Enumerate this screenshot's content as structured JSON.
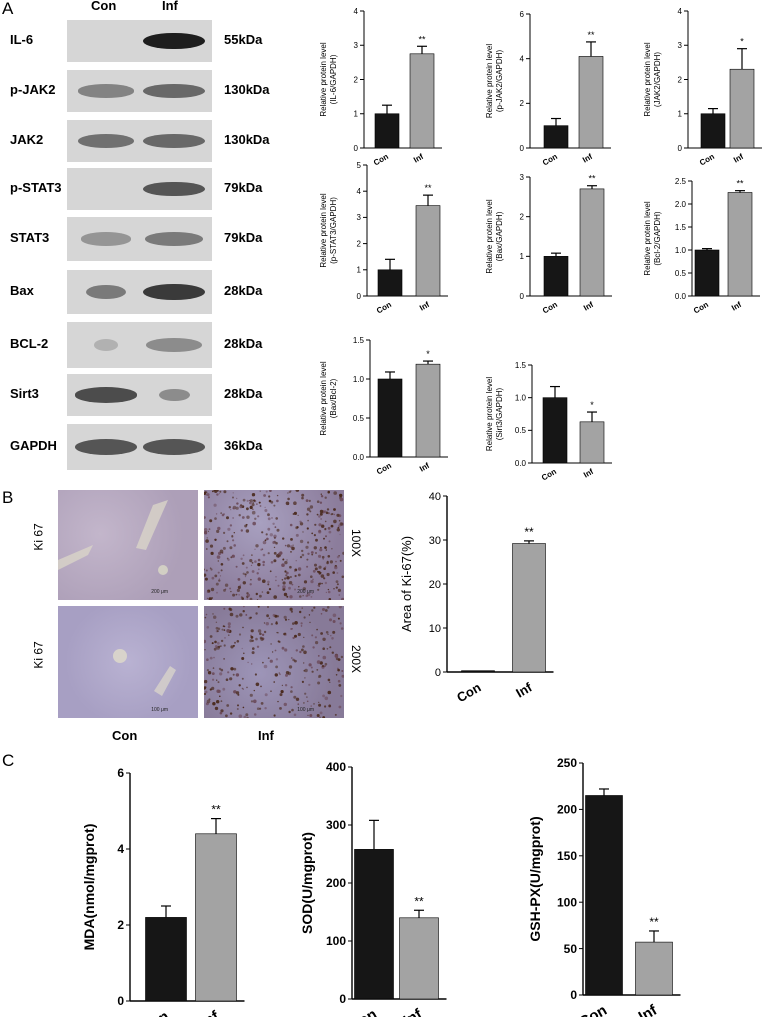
{
  "panels": {
    "a": "A",
    "b": "B",
    "c": "C"
  },
  "western_blot": {
    "lane_headers": [
      "Con",
      "Inf"
    ],
    "rows": [
      {
        "label": "IL-6",
        "size": "55kDa"
      },
      {
        "label": "p-JAK2",
        "size": "130kDa"
      },
      {
        "label": "JAK2",
        "size": "130kDa"
      },
      {
        "label": "p-STAT3",
        "size": "79kDa"
      },
      {
        "label": "STAT3",
        "size": "79kDa"
      },
      {
        "label": "Bax",
        "size": "28kDa"
      },
      {
        "label": "BCL-2",
        "size": "28kDa"
      },
      {
        "label": "Sirt3",
        "size": "28kDa"
      },
      {
        "label": "GAPDH",
        "size": "36kDa"
      }
    ]
  },
  "micrographs": {
    "row_labels": [
      "Ki 67",
      "Ki 67"
    ],
    "magnifications": [
      "100X",
      "200X"
    ],
    "scale_bars": [
      "200 μm",
      "200 μm",
      "100 μm",
      "100 μm"
    ],
    "col_labels": [
      "Con",
      "Inf"
    ]
  },
  "colors": {
    "con": "#161616",
    "inf": "#a3a3a3",
    "tissue_light": "#b5a8c0",
    "tissue_inf": "#9a86a6",
    "blot_bg": "#d6d6d6",
    "band": "#1e1e1e"
  },
  "chart_data": [
    {
      "type": "bar",
      "ylabel": [
        "Relative protein level",
        "(IL-6/GAPDH)"
      ],
      "categories": [
        "Con",
        "Inf"
      ],
      "values": [
        1.0,
        2.75
      ],
      "errors": [
        0.25,
        0.22
      ],
      "ylim": [
        0,
        4
      ],
      "yticks": [
        0,
        1,
        2,
        3,
        4
      ],
      "significance": [
        "",
        "**"
      ]
    },
    {
      "type": "bar",
      "ylabel": [
        "Relative protein level",
        "(p-JAK2/GAPDH)"
      ],
      "categories": [
        "Con",
        "Inf"
      ],
      "values": [
        1.0,
        4.1
      ],
      "errors": [
        0.32,
        0.65
      ],
      "ylim": [
        0,
        6
      ],
      "yticks": [
        0,
        2,
        4,
        6
      ],
      "significance": [
        "",
        "**"
      ]
    },
    {
      "type": "bar",
      "ylabel": [
        "Relative protein level",
        "(JAK2/GAPDH)"
      ],
      "categories": [
        "Con",
        "Inf"
      ],
      "values": [
        1.0,
        2.3
      ],
      "errors": [
        0.15,
        0.6
      ],
      "ylim": [
        0,
        4
      ],
      "yticks": [
        0,
        1,
        2,
        3,
        4
      ],
      "significance": [
        "",
        "*"
      ]
    },
    {
      "type": "bar",
      "ylabel": [
        "Relative protein level",
        "(p-STAT3/GAPDH)"
      ],
      "categories": [
        "Con",
        "Inf"
      ],
      "values": [
        1.0,
        3.45
      ],
      "errors": [
        0.4,
        0.4
      ],
      "ylim": [
        0,
        5
      ],
      "yticks": [
        0,
        1,
        2,
        3,
        4,
        5
      ],
      "significance": [
        "",
        "**"
      ]
    },
    {
      "type": "bar",
      "ylabel": [
        "Relative protein level",
        "(Bax/GAPDH)"
      ],
      "categories": [
        "Con",
        "Inf"
      ],
      "values": [
        1.0,
        2.7
      ],
      "errors": [
        0.08,
        0.08
      ],
      "ylim": [
        0,
        3
      ],
      "yticks": [
        0,
        1,
        2,
        3
      ],
      "significance": [
        "",
        "**"
      ]
    },
    {
      "type": "bar",
      "ylabel": [
        "Relative protein level",
        "(Bcl-2/GAPDH)"
      ],
      "categories": [
        "Con",
        "Inf"
      ],
      "values": [
        1.0,
        2.25
      ],
      "errors": [
        0.03,
        0.04
      ],
      "ylim": [
        0,
        2.5
      ],
      "yticks": [
        0.0,
        0.5,
        1.0,
        1.5,
        2.0,
        2.5
      ],
      "significance": [
        "",
        "**"
      ]
    },
    {
      "type": "bar",
      "ylabel": [
        "Relative protein level",
        "(Bax/Bcl-2)"
      ],
      "categories": [
        "Con",
        "Inf"
      ],
      "values": [
        1.0,
        1.19
      ],
      "errors": [
        0.09,
        0.04
      ],
      "ylim": [
        0,
        1.5
      ],
      "yticks": [
        0.0,
        0.5,
        1.0,
        1.5
      ],
      "significance": [
        "",
        "*"
      ]
    },
    {
      "type": "bar",
      "ylabel": [
        "Relative protein level",
        "(Sirt3/GAPDH)"
      ],
      "categories": [
        "Con",
        "Inf"
      ],
      "values": [
        1.0,
        0.63
      ],
      "errors": [
        0.17,
        0.15
      ],
      "ylim": [
        0,
        1.5
      ],
      "yticks": [
        0.0,
        0.5,
        1.0,
        1.5
      ],
      "significance": [
        "",
        "*"
      ]
    },
    {
      "type": "bar",
      "ylabel": [
        "Area of Ki-67(%)"
      ],
      "categories": [
        "Con",
        "Inf"
      ],
      "values": [
        0.3,
        29.2
      ],
      "errors": [
        0.0,
        0.6
      ],
      "ylim": [
        0,
        40
      ],
      "yticks": [
        0,
        10,
        20,
        30,
        40
      ],
      "significance": [
        "",
        "**"
      ]
    },
    {
      "type": "bar",
      "ylabel": [
        "MDA(nmol/mgprot)"
      ],
      "categories": [
        "Con",
        "Inf"
      ],
      "values": [
        2.2,
        4.4
      ],
      "errors": [
        0.3,
        0.4
      ],
      "ylim": [
        0,
        6
      ],
      "yticks": [
        0,
        2,
        4,
        6
      ],
      "significance": [
        "",
        "**"
      ]
    },
    {
      "type": "bar",
      "ylabel": [
        "SOD(U/mgprot)"
      ],
      "categories": [
        "Con",
        "Inf"
      ],
      "values": [
        258,
        140
      ],
      "errors": [
        50,
        13
      ],
      "ylim": [
        0,
        400
      ],
      "yticks": [
        0,
        100,
        200,
        300,
        400
      ],
      "significance": [
        "",
        "**"
      ]
    },
    {
      "type": "bar",
      "ylabel": [
        "GSH-PX(U/mgprot)"
      ],
      "categories": [
        "Con",
        "Inf"
      ],
      "values": [
        215,
        57
      ],
      "errors": [
        7,
        12
      ],
      "ylim": [
        0,
        250
      ],
      "yticks": [
        0,
        50,
        100,
        150,
        200,
        250
      ],
      "significance": [
        "",
        "**"
      ]
    }
  ]
}
